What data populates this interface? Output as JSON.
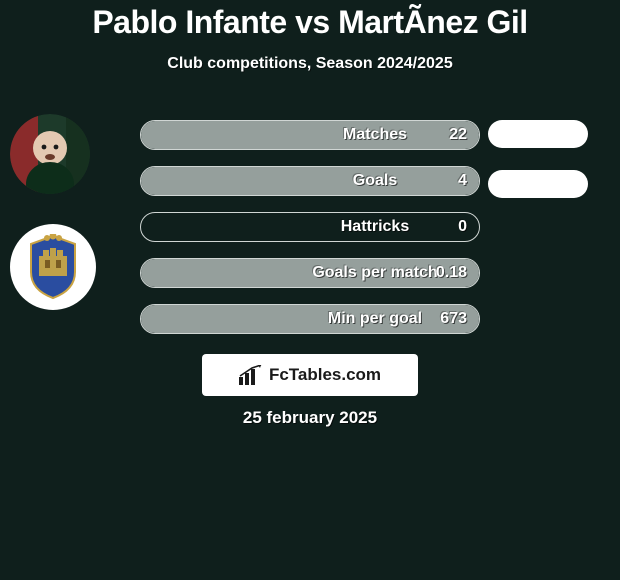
{
  "title": "Pablo Infante vs MartÃ­nez Gil",
  "subtitle": "Club competitions, Season 2024/2025",
  "date": "25 february 2025",
  "branding": "FcTables.com",
  "colors": {
    "background": "#0f1f1c",
    "bar_fill": "#9da6a3",
    "bar_border": "#d0d6d4",
    "text": "#ffffff",
    "pill": "#ffffff"
  },
  "right_pills": [
    {
      "show": true
    },
    {
      "show": true
    }
  ],
  "stats": [
    {
      "label": "Matches",
      "value": "22",
      "fill_pct": 100
    },
    {
      "label": "Goals",
      "value": "4",
      "fill_pct": 100
    },
    {
      "label": "Hattricks",
      "value": "0",
      "fill_pct": 0
    },
    {
      "label": "Goals per match",
      "value": "0.18",
      "fill_pct": 100
    },
    {
      "label": "Min per goal",
      "value": "673",
      "fill_pct": 100
    }
  ],
  "styling": {
    "title_fontsize": 32,
    "subtitle_fontsize": 16,
    "stat_label_fontsize": 16,
    "stat_row_height": 30,
    "stat_row_gap": 16,
    "container_width": 620,
    "container_height": 580
  }
}
